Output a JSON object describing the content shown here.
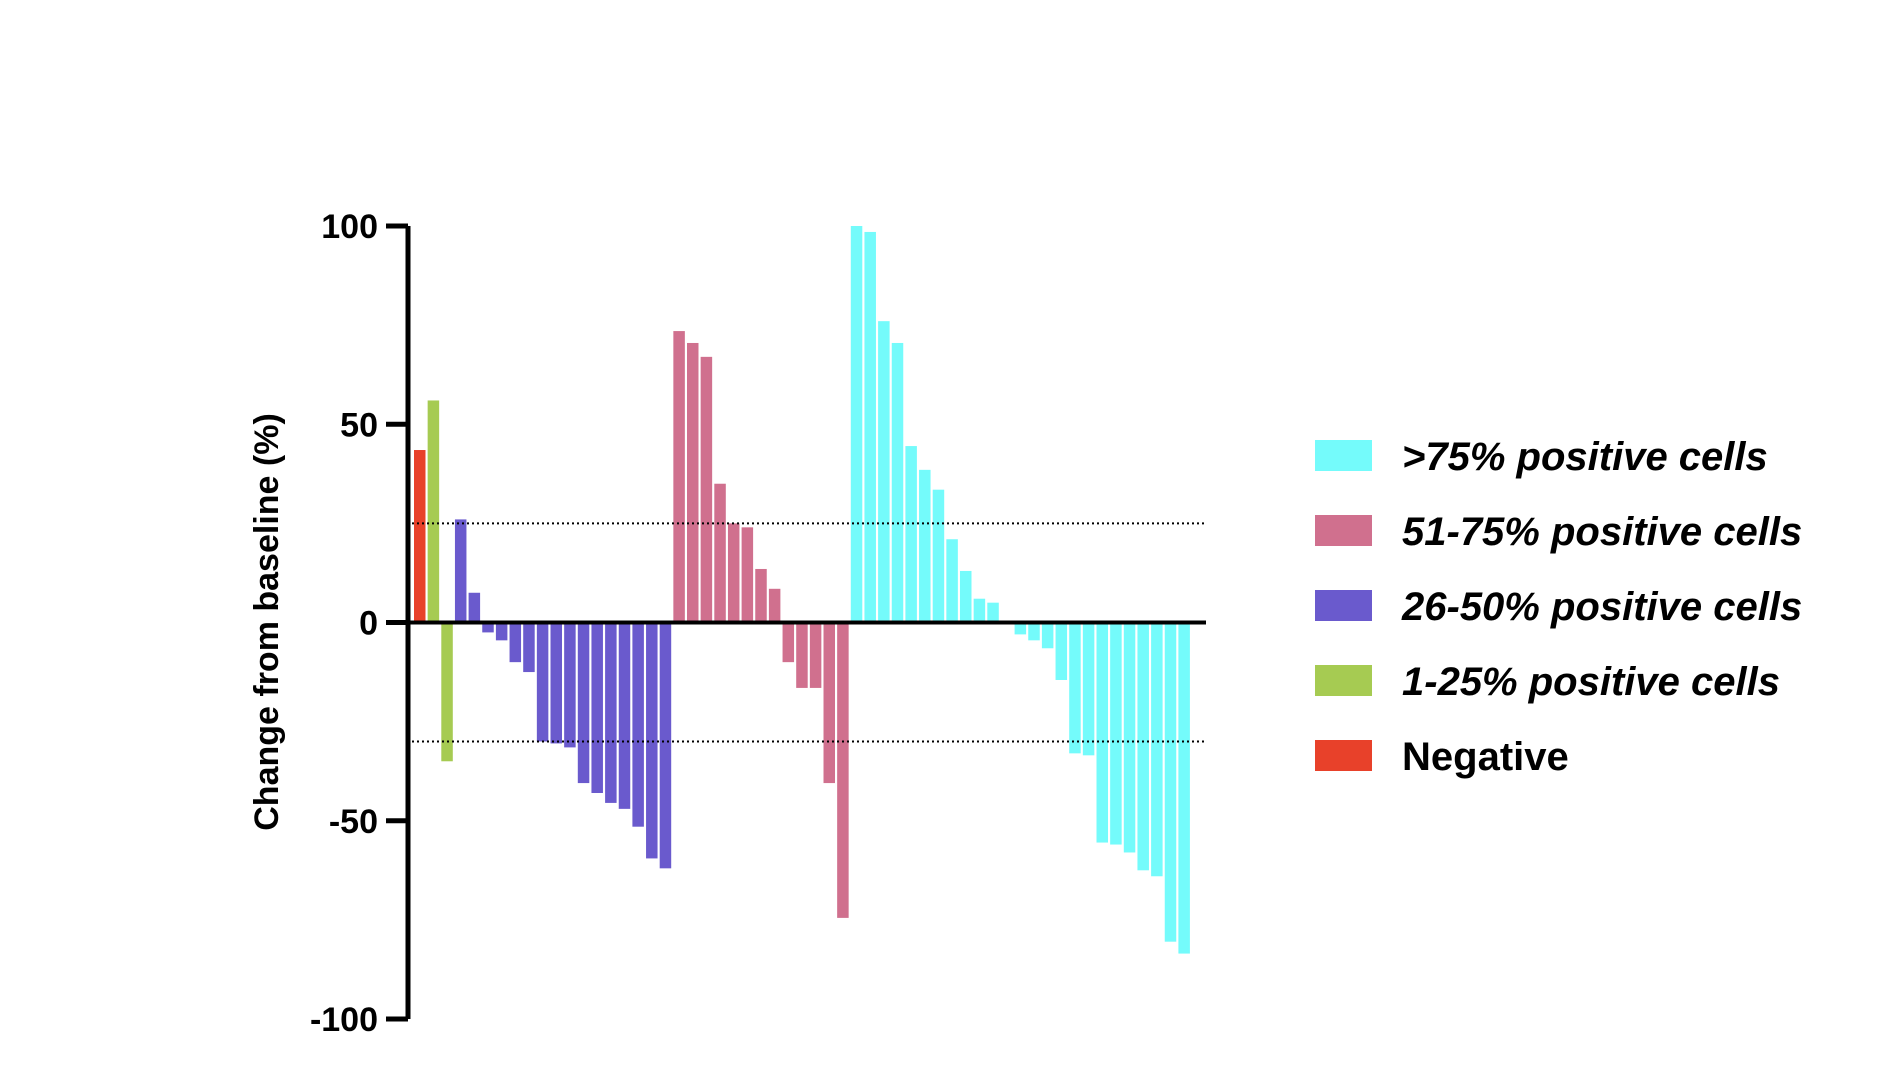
{
  "chart_data": {
    "type": "bar",
    "title": "",
    "xlabel": "",
    "ylabel": "Change from baseline (%)",
    "ylim": [
      -100,
      100
    ],
    "yticks": [
      100,
      50,
      0,
      -50,
      -100
    ],
    "ytick_labels": [
      "100",
      "50",
      "0",
      "-50",
      "-100"
    ],
    "reference_lines": [
      25,
      -30
    ],
    "grid": false,
    "legend_position": "right",
    "series": [
      {
        "name": "Negative",
        "color": "#e8412a",
        "values": [
          43.5
        ]
      },
      {
        "name": "1-25% positive cells",
        "color": "#a6cb52",
        "values": [
          56,
          -35
        ]
      },
      {
        "name": "26-50% positive cells",
        "color": "#6a5acd",
        "values": [
          26,
          7.5,
          -2.5,
          -4.5,
          -10,
          -12.5,
          -30,
          -30.5,
          -31.5,
          -40.5,
          -43,
          -45.5,
          -47,
          -51.5,
          -59.5,
          -62
        ]
      },
      {
        "name": "51-75% positive cells",
        "color": "#d0708e",
        "values": [
          73.5,
          70.5,
          67,
          35,
          25,
          24,
          13.5,
          8.5,
          -10,
          -16.5,
          -16.5,
          -40.5,
          -74.5
        ]
      },
      {
        "name": ">75% positive cells",
        "color": "#74fbfb",
        "values": [
          100,
          98.5,
          76,
          70.5,
          44.5,
          38.5,
          33.5,
          21,
          13,
          6,
          5,
          0.3,
          -3,
          -4.5,
          -6.5,
          -14.5,
          -33,
          -33.5,
          -55.5,
          -56,
          -58,
          -62.5,
          -64,
          -80.5,
          -83.5
        ]
      }
    ],
    "legend": [
      {
        "label": ">75% positive cells",
        "color": "#74fbfb",
        "italic": true
      },
      {
        "label": "51-75% positive cells",
        "color": "#d0708e",
        "italic": true
      },
      {
        "label": "26-50% positive cells",
        "color": "#6a5acd",
        "italic": true
      },
      {
        "label": "1-25% positive cells",
        "color": "#a6cb52",
        "italic": true
      },
      {
        "label": "Negative",
        "color": "#e8412a",
        "italic": false
      }
    ]
  }
}
